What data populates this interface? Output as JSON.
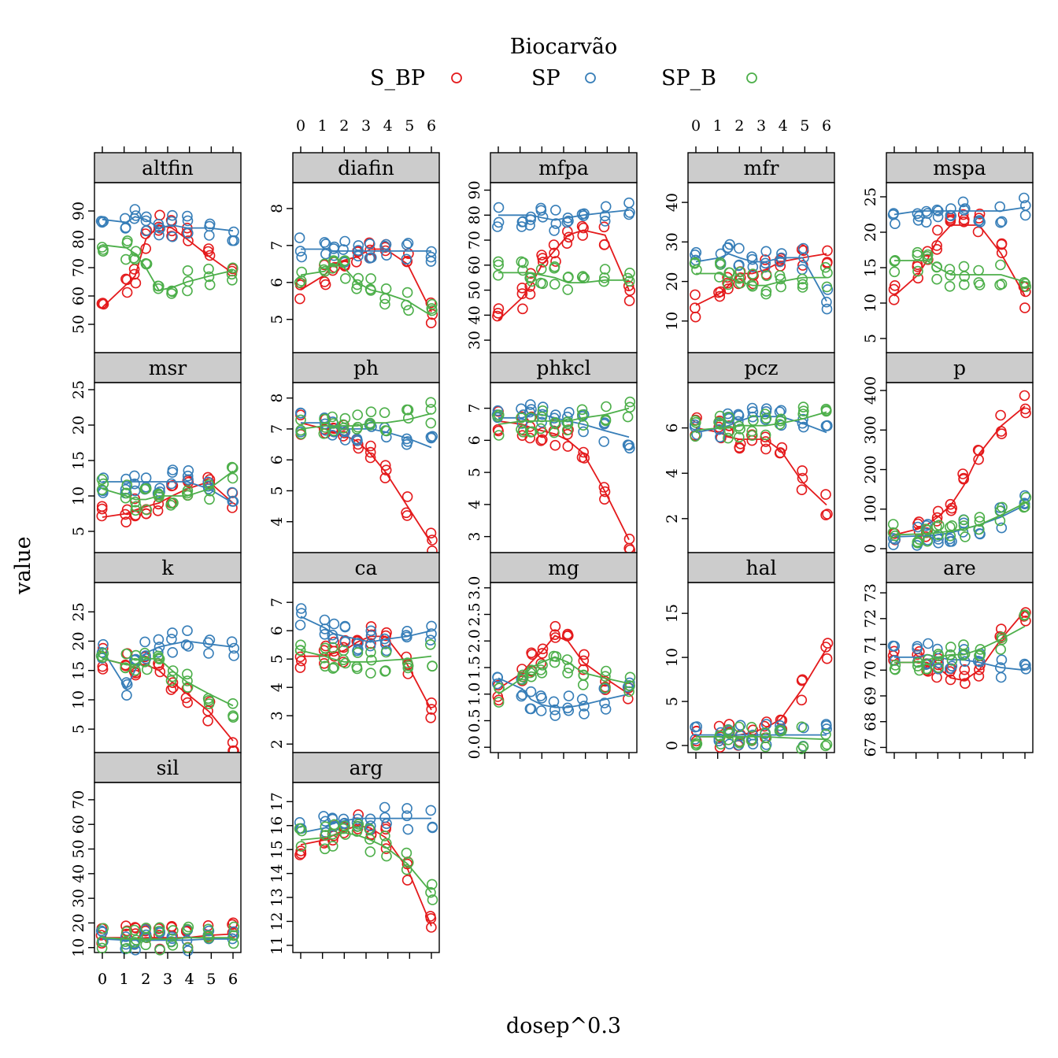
{
  "chart_data": {
    "type": "scatter",
    "xlabel": "dosep^0.3",
    "ylabel": "value",
    "legend": {
      "title": "Biocarvão",
      "placement": "top-center",
      "entries": [
        "S_BP",
        "SP",
        "SP_B"
      ]
    },
    "colors": {
      "S_BP": "#E41A1C",
      "SP": "#377EB8",
      "SP_B": "#4DAF4A"
    },
    "x_ticks": [
      "0",
      "1",
      "2",
      "3",
      "4",
      "5",
      "6"
    ],
    "x_levels": [
      0,
      1.1,
      1.5,
      2.0,
      2.6,
      3.2,
      3.9,
      4.9,
      6.0
    ],
    "panels": [
      {
        "name": "altfin",
        "ylim": [
          40,
          100
        ],
        "yticks": [
          50,
          60,
          70,
          80,
          90
        ],
        "lines": {
          "S_BP": [
            56,
            64,
            67,
            80,
            85,
            84,
            80,
            74,
            68
          ],
          "SP": [
            87,
            86,
            88,
            87,
            84,
            85,
            84,
            84,
            83
          ],
          "SP_B": [
            78,
            77,
            75,
            70,
            62,
            63,
            65,
            67,
            69
          ]
        }
      },
      {
        "name": "diafin",
        "ylim": [
          4.1,
          8.7
        ],
        "yticks": [
          5,
          6,
          7,
          8
        ],
        "lines": {
          "S_BP": [
            5.8,
            6.2,
            6.5,
            6.6,
            6.7,
            6.9,
            6.9,
            6.5,
            5.2
          ],
          "SP": [
            6.9,
            6.9,
            6.85,
            6.85,
            6.85,
            6.85,
            6.85,
            6.85,
            6.85
          ],
          "SP_B": [
            6.2,
            6.3,
            6.5,
            6.4,
            6.0,
            5.8,
            5.7,
            5.5,
            5.1
          ]
        }
      },
      {
        "name": "mfpa",
        "ylim": [
          25,
          93
        ],
        "yticks": [
          30,
          40,
          50,
          60,
          70,
          80,
          90
        ],
        "lines": {
          "S_BP": [
            38,
            47,
            52,
            60,
            66,
            72,
            74,
            72,
            50
          ],
          "SP": [
            80,
            80,
            80,
            79,
            78,
            79,
            80,
            81,
            82
          ],
          "SP_B": [
            57,
            57,
            57,
            56,
            55,
            53,
            53,
            54,
            54
          ]
        }
      },
      {
        "name": "mfr",
        "ylim": [
          2,
          45
        ],
        "yticks": [
          10,
          20,
          30,
          40
        ],
        "lines": {
          "S_BP": [
            14,
            17,
            19,
            22,
            22,
            23,
            25,
            26,
            27
          ],
          "SP": [
            25,
            26,
            27,
            26,
            25,
            25,
            26,
            26,
            15
          ],
          "SP_B": [
            22,
            22,
            21,
            20,
            19,
            19,
            20,
            21,
            21
          ]
        }
      },
      {
        "name": "mspa",
        "ylim": [
          3,
          27
        ],
        "yticks": [
          5,
          10,
          15,
          20,
          25
        ],
        "lines": {
          "S_BP": [
            11,
            14,
            16,
            19,
            21,
            21,
            21,
            17,
            11
          ],
          "SP": [
            22.5,
            23,
            23,
            23,
            23,
            23,
            23,
            23,
            23.5
          ],
          "SP_B": [
            16,
            16,
            16,
            15,
            14,
            14,
            14,
            14,
            13
          ]
        }
      },
      {
        "name": "msr",
        "ylim": [
          2,
          26
        ],
        "yticks": [
          5,
          10,
          15,
          20,
          25
        ],
        "lines": {
          "S_BP": [
            7,
            7.5,
            8,
            8.5,
            9,
            10,
            11,
            12,
            9
          ],
          "SP": [
            12,
            12,
            12,
            12,
            12,
            12,
            12,
            11,
            9
          ],
          "SP_B": [
            11,
            10,
            9.5,
            9.5,
            10,
            10,
            10,
            11,
            13.5
          ]
        }
      },
      {
        "name": "ph",
        "ylim": [
          3,
          8.5
        ],
        "yticks": [
          4,
          5,
          6,
          7,
          8
        ],
        "lines": {
          "S_BP": [
            7.2,
            7.0,
            6.9,
            6.8,
            6.6,
            6.2,
            5.6,
            4.5,
            3.3
          ],
          "SP": [
            7.2,
            7.2,
            7.1,
            7.0,
            7.0,
            7.0,
            6.9,
            6.7,
            6.4
          ],
          "SP_B": [
            7.0,
            7.1,
            7.1,
            7.1,
            7.1,
            7.2,
            7.2,
            7.3,
            7.5
          ]
        }
      },
      {
        "name": "phkcl",
        "ylim": [
          2.5,
          7.8
        ],
        "yticks": [
          3,
          4,
          5,
          6,
          7
        ],
        "lines": {
          "S_BP": [
            6.6,
            6.5,
            6.4,
            6.3,
            6.2,
            6.0,
            5.6,
            4.4,
            2.9
          ],
          "SP": [
            6.7,
            6.7,
            6.8,
            6.8,
            6.7,
            6.6,
            6.5,
            6.3,
            6.1
          ],
          "SP_B": [
            6.5,
            6.6,
            6.6,
            6.6,
            6.6,
            6.6,
            6.7,
            6.8,
            7.0
          ]
        }
      },
      {
        "name": "pcz",
        "ylim": [
          0.5,
          8.0
        ],
        "yticks": [
          2,
          4,
          6
        ],
        "lines": {
          "S_BP": [
            6.0,
            5.8,
            5.6,
            5.5,
            5.5,
            5.5,
            5.0,
            3.6,
            2.6
          ],
          "SP": [
            5.8,
            6.0,
            6.1,
            6.3,
            6.5,
            6.5,
            6.5,
            6.2,
            5.8
          ],
          "SP_B": [
            5.9,
            6.0,
            6.0,
            6.1,
            6.1,
            6.1,
            6.2,
            6.4,
            6.7
          ]
        }
      },
      {
        "name": "p",
        "ylim": [
          -10,
          420
        ],
        "yticks": [
          0,
          100,
          200,
          300,
          400
        ],
        "lines": {
          "S_BP": [
            35,
            50,
            60,
            80,
            110,
            160,
            240,
            310,
            360
          ],
          "SP": [
            30,
            32,
            33,
            35,
            40,
            50,
            60,
            80,
            110
          ],
          "SP_B": [
            35,
            37,
            38,
            40,
            45,
            50,
            60,
            85,
            115
          ]
        }
      },
      {
        "name": "k",
        "ylim": [
          1,
          30
        ],
        "yticks": [
          5,
          10,
          15,
          20,
          25
        ],
        "lines": {
          "S_BP": [
            17,
            16,
            16,
            16,
            15,
            13,
            11,
            8,
            3
          ],
          "SP": [
            18.5,
            12,
            15,
            18,
            19,
            19.5,
            20,
            19.5,
            19
          ],
          "SP_B": [
            17,
            16,
            16,
            17,
            17,
            15,
            13,
            11,
            9
          ]
        }
      },
      {
        "name": "ca",
        "ylim": [
          1.7,
          7.7
        ],
        "yticks": [
          2,
          3,
          4,
          5,
          6,
          7
        ],
        "lines": {
          "S_BP": [
            5.1,
            5.1,
            5.2,
            5.3,
            5.6,
            5.8,
            5.8,
            4.8,
            3.2
          ],
          "SP": [
            6.5,
            6.1,
            5.9,
            5.8,
            5.7,
            5.6,
            5.7,
            5.8,
            6.0
          ],
          "SP_B": [
            5.3,
            5.1,
            5.0,
            4.9,
            4.9,
            4.9,
            4.95,
            5.0,
            5.1
          ]
        }
      },
      {
        "name": "mg",
        "ylim": [
          -0.1,
          3.1
        ],
        "yticks": [
          0.0,
          0.5,
          1.0,
          1.5,
          2.0,
          2.5,
          3.0
        ],
        "yticklabels": [
          "0.0",
          "0.5",
          "1.0",
          "1.5",
          "2.0",
          "2.5",
          "3.0"
        ],
        "lines": {
          "S_BP": [
            1.1,
            1.4,
            1.6,
            1.8,
            2.1,
            2.0,
            1.6,
            1.3,
            1.0
          ],
          "SP": [
            1.3,
            1.1,
            0.9,
            0.8,
            0.75,
            0.75,
            0.8,
            0.9,
            1.0
          ],
          "SP_B": [
            1.0,
            1.3,
            1.5,
            1.6,
            1.7,
            1.6,
            1.4,
            1.3,
            1.2
          ]
        }
      },
      {
        "name": "hal",
        "ylim": [
          -0.8,
          18.5
        ],
        "yticks": [
          0,
          5,
          10,
          15
        ],
        "lines": {
          "S_BP": [
            1.0,
            1.0,
            1.1,
            1.2,
            1.5,
            2.0,
            3.0,
            6.5,
            11
          ],
          "SP": [
            1.2,
            1.2,
            1.2,
            1.2,
            1.2,
            1.2,
            1.2,
            1.2,
            1.2
          ],
          "SP_B": [
            1.0,
            1.0,
            1.0,
            1.0,
            1.0,
            1.0,
            0.9,
            0.8,
            0.7
          ]
        }
      },
      {
        "name": "are",
        "ylim": [
          66.8,
          73.4
        ],
        "yticks": [
          67,
          68,
          69,
          70,
          71,
          72,
          73
        ],
        "lines": {
          "S_BP": [
            70.3,
            70.3,
            70.3,
            70.1,
            69.7,
            69.6,
            70.0,
            71.2,
            72.3
          ],
          "SP": [
            70.5,
            70.5,
            70.6,
            70.5,
            70.4,
            70.4,
            70.3,
            70.1,
            70.0
          ],
          "SP_B": [
            70.3,
            70.3,
            70.4,
            70.5,
            70.6,
            70.6,
            70.8,
            71.2,
            71.7
          ]
        }
      },
      {
        "name": "sil",
        "ylim": [
          8,
          77
        ],
        "yticks": [
          10,
          20,
          30,
          40,
          50,
          60,
          70
        ],
        "lines": {
          "S_BP": [
            14,
            14,
            13.5,
            14,
            14,
            14,
            14,
            15,
            15.5
          ],
          "SP": [
            13.5,
            13,
            13,
            13,
            13,
            13,
            13,
            13.5,
            13.5
          ],
          "SP_B": [
            14,
            13.5,
            13.5,
            13.5,
            13.5,
            13.5,
            14,
            14,
            14
          ]
        }
      },
      {
        "name": "arg",
        "ylim": [
          10.7,
          17.8
        ],
        "yticks": [
          11,
          12,
          13,
          14,
          15,
          16,
          17
        ],
        "lines": {
          "S_BP": [
            15.2,
            15.4,
            15.6,
            15.8,
            16.0,
            15.9,
            15.5,
            14.2,
            11.8
          ],
          "SP": [
            15.7,
            15.9,
            16.1,
            16.2,
            16.3,
            16.3,
            16.3,
            16.3,
            16.3
          ],
          "SP_B": [
            15.4,
            15.5,
            15.6,
            15.7,
            15.6,
            15.4,
            15.1,
            14.4,
            13.2
          ]
        }
      }
    ]
  }
}
